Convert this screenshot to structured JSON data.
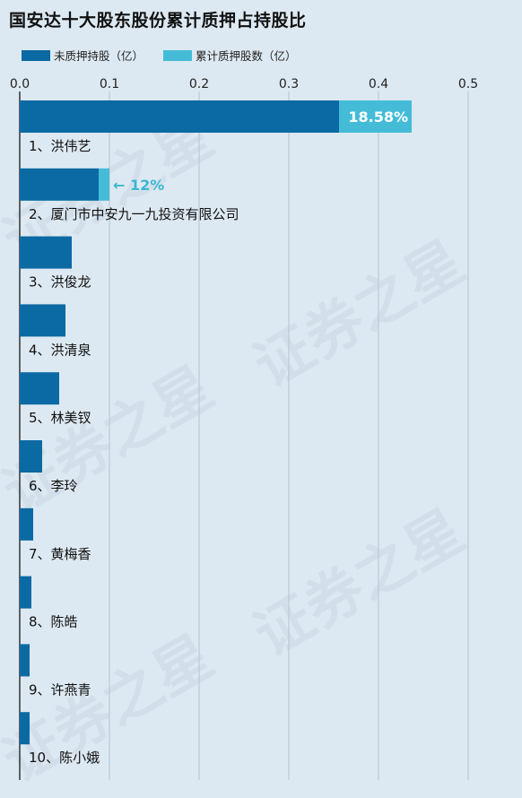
{
  "chart_data": {
    "type": "bar",
    "orientation": "horizontal",
    "stacked": true,
    "title": "国安达十大股东股份累计质押占持股比",
    "xlim": [
      0,
      0.5
    ],
    "xticks": [
      "0.0",
      "0.1",
      "0.2",
      "0.3",
      "0.4",
      "0.5"
    ],
    "grid": true,
    "legend_position": "top-left",
    "categories": [
      "1、洪伟艺",
      "2、厦门市中安九一九投资有限公司",
      "3、洪俊龙",
      "4、洪清泉",
      "5、林美钗",
      "6、李玲",
      "7、黄梅香",
      "8、陈皓",
      "9、许燕青",
      "10、陈小娥"
    ],
    "series": [
      {
        "name": "未质押持股（亿）",
        "color": "#0b6aa3",
        "values": [
          0.356,
          0.088,
          0.058,
          0.051,
          0.044,
          0.025,
          0.015,
          0.013,
          0.011,
          0.011
        ]
      },
      {
        "name": "累计质押股数（亿）",
        "color": "#45bcd7",
        "values": [
          0.081,
          0.012,
          0,
          0,
          0,
          0,
          0,
          0,
          0,
          0
        ]
      }
    ],
    "annotations": [
      {
        "category_index": 0,
        "text": "18.58%",
        "style": "inside"
      },
      {
        "category_index": 1,
        "text": "← 12%",
        "style": "outside"
      }
    ]
  },
  "watermark_text": "证券之星"
}
